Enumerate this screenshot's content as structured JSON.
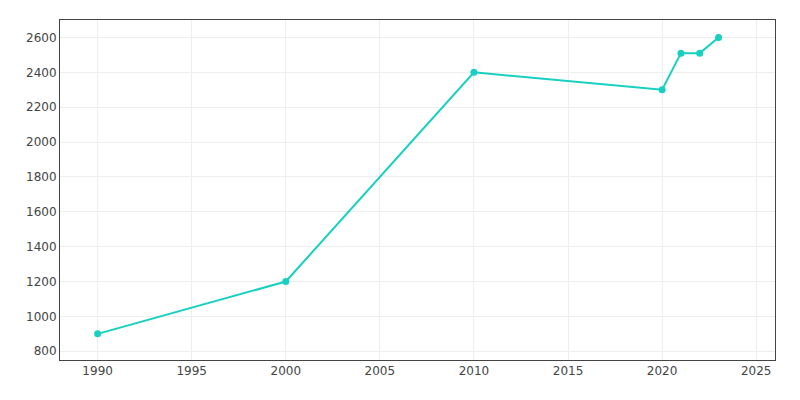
{
  "chart_data": {
    "type": "line",
    "x": [
      1990,
      2000,
      2010,
      2020,
      2021,
      2022,
      2023
    ],
    "values": [
      900,
      1200,
      2400,
      2300,
      2510,
      2510,
      2600
    ],
    "color": "#17d0c1",
    "marker": "circle",
    "xlim": [
      1988,
      2026
    ],
    "ylim": [
      750,
      2700
    ],
    "xticks": [
      1990,
      1995,
      2000,
      2005,
      2010,
      2015,
      2020,
      2025
    ],
    "yticks": [
      800,
      1000,
      1200,
      1400,
      1600,
      1800,
      2000,
      2200,
      2400,
      2600
    ],
    "grid": true
  }
}
